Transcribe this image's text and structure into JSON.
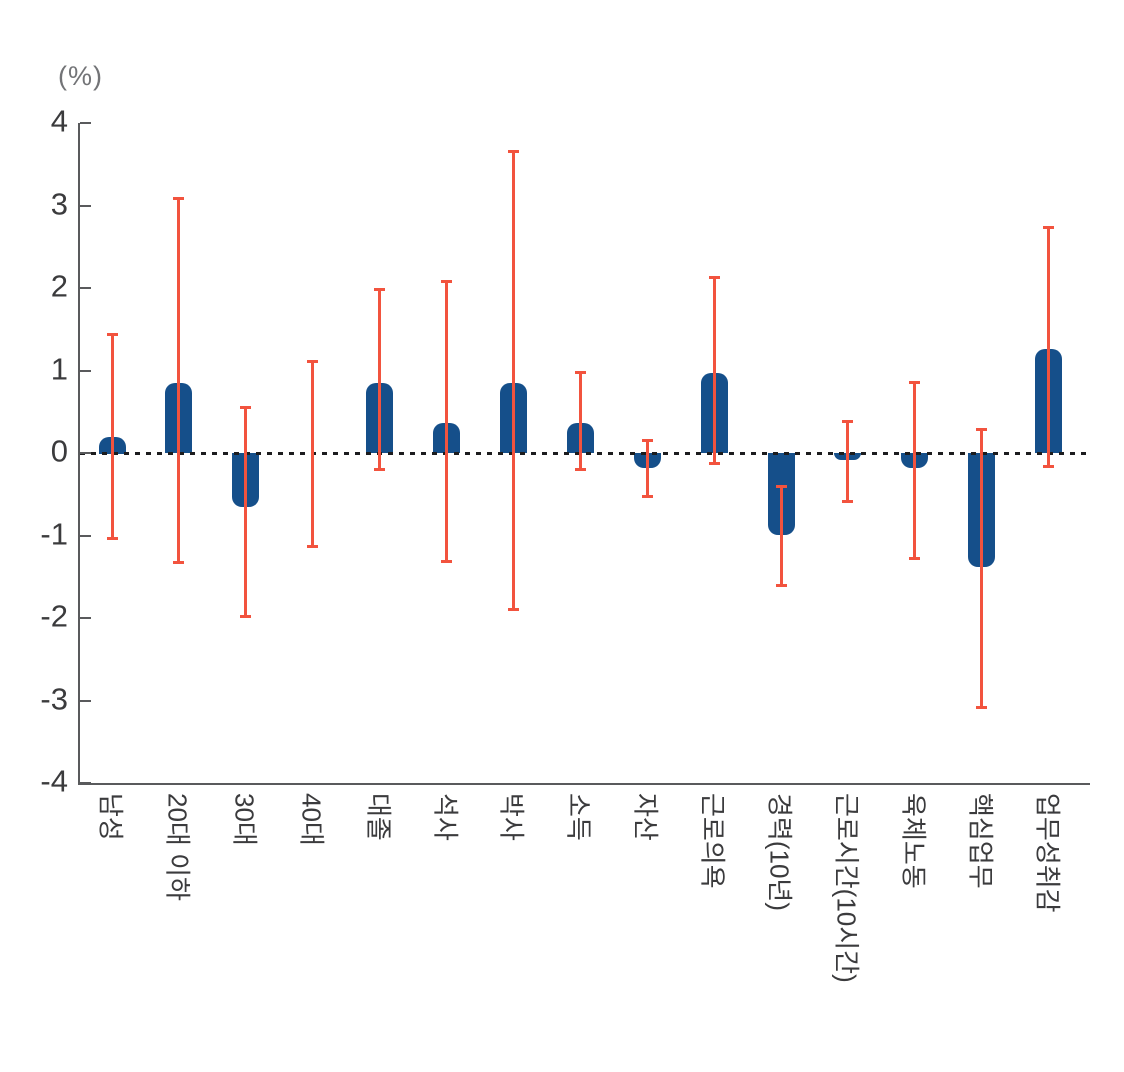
{
  "chart_data": {
    "type": "bar",
    "title": "",
    "xlabel": "",
    "ylabel": "(%)",
    "ylim": [
      -4,
      4
    ],
    "yticks": [
      4,
      3,
      2,
      1,
      0,
      -1,
      -2,
      -3,
      -4
    ],
    "grid": false,
    "zero_line_style": "dotted-black",
    "legend": null,
    "bar_color": "#154f8a",
    "error_bar_color": "#f2533e",
    "axis_color": "#595a5c",
    "tick_label_color": "#3b3b3d",
    "unit_label_color": "#737477",
    "categories": [
      "남성",
      "20대 이하",
      "30대",
      "40대",
      "대졸",
      "석사",
      "박사",
      "소득",
      "자산",
      "근로의욕",
      "경력(10년)",
      "근로시간(10시간)",
      "육체노동",
      "핵심업무",
      "업무성취감"
    ],
    "values": [
      0.2,
      0.85,
      -0.65,
      0.0,
      0.85,
      0.36,
      0.85,
      0.36,
      -0.18,
      0.97,
      -0.99,
      -0.09,
      -0.18,
      -1.38,
      1.26
    ],
    "error_low": [
      -1.05,
      -1.35,
      -2.0,
      -1.15,
      -0.22,
      -1.33,
      -1.92,
      -0.22,
      -0.55,
      -0.15,
      -1.62,
      -0.6,
      -1.3,
      -3.1,
      -0.18
    ],
    "error_high": [
      1.45,
      3.1,
      0.57,
      1.13,
      2.0,
      2.1,
      3.67,
      1.0,
      0.17,
      2.14,
      -0.39,
      0.4,
      0.87,
      0.3,
      2.75
    ]
  }
}
